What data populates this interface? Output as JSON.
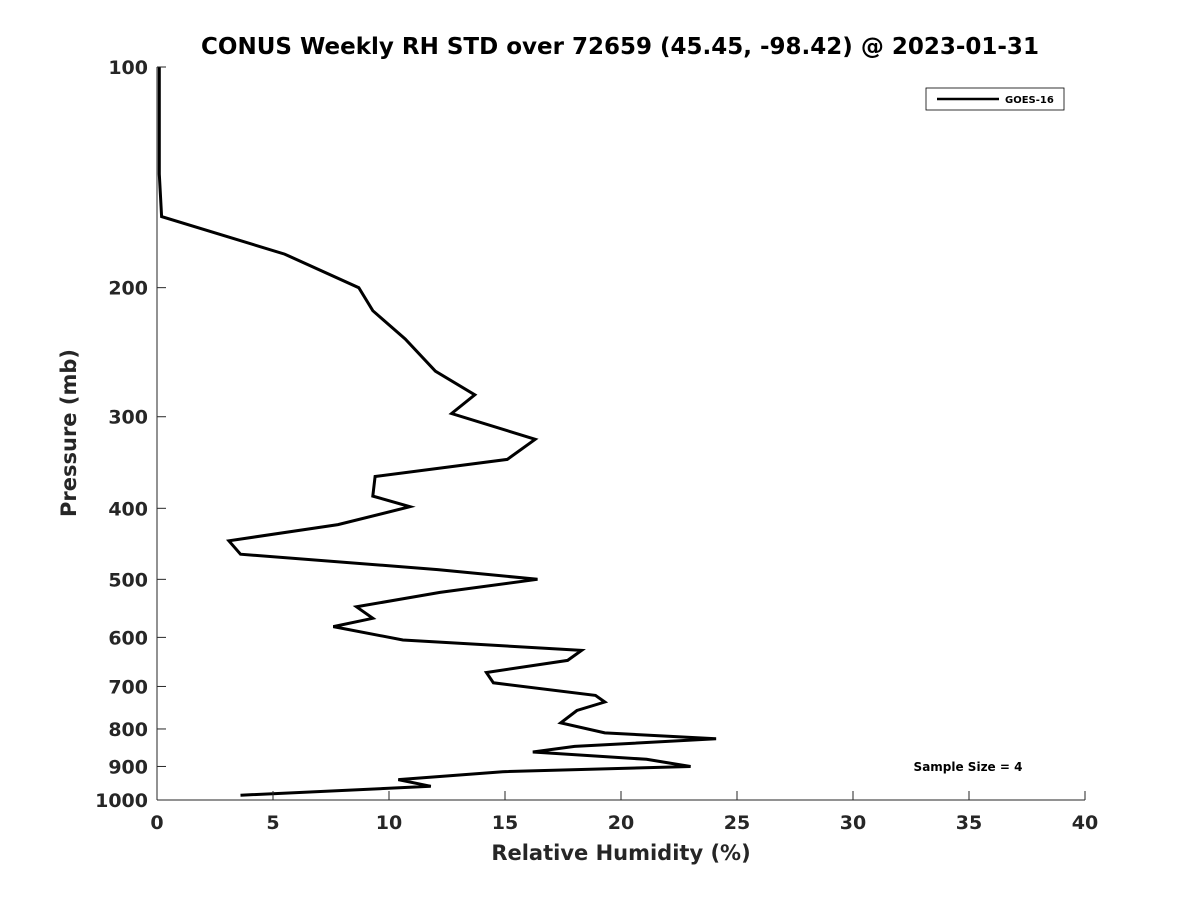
{
  "chart_data": {
    "type": "line",
    "title": "CONUS Weekly RH STD over 72659 (45.45, -98.42) @ 2023-01-31",
    "xlabel": "Relative Humidity (%)",
    "ylabel": "Pressure (mb)",
    "xlim": [
      0,
      40
    ],
    "ylim": [
      100,
      1000
    ],
    "yscale": "log",
    "y_reversed": true,
    "grid": false,
    "xticks": [
      0,
      5,
      10,
      15,
      20,
      25,
      30,
      35,
      40
    ],
    "yticks": [
      100,
      200,
      300,
      400,
      500,
      600,
      700,
      800,
      900,
      1000
    ],
    "legend_position": "top-right",
    "annotation": "Sample Size = 4",
    "series": [
      {
        "name": "GOES-16",
        "color": "#000000",
        "points": [
          [
            0.1,
            100
          ],
          [
            0.1,
            120
          ],
          [
            0.1,
            140
          ],
          [
            0.2,
            160
          ],
          [
            5.5,
            180
          ],
          [
            8.7,
            200
          ],
          [
            9.3,
            215
          ],
          [
            10.7,
            235
          ],
          [
            12.0,
            260
          ],
          [
            13.7,
            280
          ],
          [
            12.7,
            297
          ],
          [
            16.3,
            322
          ],
          [
            15.1,
            343
          ],
          [
            9.4,
            362
          ],
          [
            9.3,
            385
          ],
          [
            10.9,
            398
          ],
          [
            7.8,
            421
          ],
          [
            3.1,
            443
          ],
          [
            3.6,
            462
          ],
          [
            12.1,
            485
          ],
          [
            16.4,
            500
          ],
          [
            12.2,
            521
          ],
          [
            8.6,
            545
          ],
          [
            9.3,
            565
          ],
          [
            7.6,
            580
          ],
          [
            10.6,
            605
          ],
          [
            18.3,
            625
          ],
          [
            17.7,
            645
          ],
          [
            14.2,
            670
          ],
          [
            14.5,
            692
          ],
          [
            18.9,
            720
          ],
          [
            19.3,
            735
          ],
          [
            18.1,
            755
          ],
          [
            17.4,
            785
          ],
          [
            19.3,
            810
          ],
          [
            24.1,
            825
          ],
          [
            18.0,
            845
          ],
          [
            16.2,
            860
          ],
          [
            21.1,
            880
          ],
          [
            23.0,
            900
          ],
          [
            14.9,
            915
          ],
          [
            10.4,
            938
          ],
          [
            11.8,
            958
          ],
          [
            3.6,
            985
          ]
        ]
      }
    ]
  }
}
